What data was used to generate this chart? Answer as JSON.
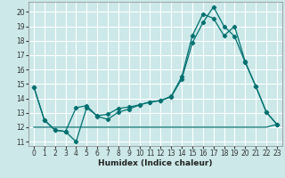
{
  "xlabel": "Humidex (Indice chaleur)",
  "bg_color": "#cce8e8",
  "grid_color": "#ffffff",
  "line_color": "#007070",
  "xlim": [
    -0.5,
    23.5
  ],
  "ylim": [
    10.7,
    20.7
  ],
  "yticks": [
    11,
    12,
    13,
    14,
    15,
    16,
    17,
    18,
    19,
    20
  ],
  "xticks": [
    0,
    1,
    2,
    3,
    4,
    5,
    6,
    7,
    8,
    9,
    10,
    11,
    12,
    13,
    14,
    15,
    16,
    17,
    18,
    19,
    20,
    21,
    22,
    23
  ],
  "line1_x": [
    0,
    1,
    2,
    3,
    4,
    5,
    6,
    7,
    8,
    9,
    10,
    11,
    12,
    13,
    14,
    15,
    16,
    17,
    18,
    19,
    20,
    21,
    22,
    23
  ],
  "line1_y": [
    14.8,
    12.5,
    11.8,
    11.7,
    11.0,
    13.35,
    12.8,
    12.9,
    13.3,
    13.4,
    13.55,
    13.75,
    13.85,
    14.1,
    15.35,
    17.85,
    19.25,
    20.35,
    19.0,
    18.3,
    16.5,
    14.85,
    13.05,
    12.2
  ],
  "line2_x": [
    0,
    1,
    2,
    3,
    4,
    5,
    6,
    7,
    8,
    9,
    10,
    11,
    12,
    13,
    14,
    15,
    16,
    17,
    18,
    19,
    20,
    21,
    22,
    23
  ],
  "line2_y": [
    14.8,
    12.5,
    11.8,
    11.7,
    13.35,
    13.5,
    12.75,
    12.55,
    13.05,
    13.25,
    13.55,
    13.75,
    13.85,
    14.15,
    15.5,
    18.35,
    19.85,
    19.55,
    18.35,
    19.0,
    16.55,
    14.85,
    13.05,
    12.2
  ],
  "line3_x": [
    0,
    1,
    2,
    3,
    4,
    5,
    6,
    7,
    8,
    9,
    10,
    11,
    12,
    13,
    14,
    15,
    16,
    17,
    18,
    19,
    20,
    21,
    22,
    23
  ],
  "line3_y": [
    12.0,
    12.0,
    12.0,
    12.0,
    12.0,
    12.0,
    12.0,
    12.0,
    12.0,
    12.0,
    12.0,
    12.0,
    12.0,
    12.0,
    12.0,
    12.0,
    12.0,
    12.0,
    12.0,
    12.0,
    12.0,
    12.0,
    12.0,
    12.2
  ],
  "xlabel_fontsize": 6.5,
  "tick_fontsize": 5.5,
  "linewidth": 0.9,
  "markersize": 2.2
}
